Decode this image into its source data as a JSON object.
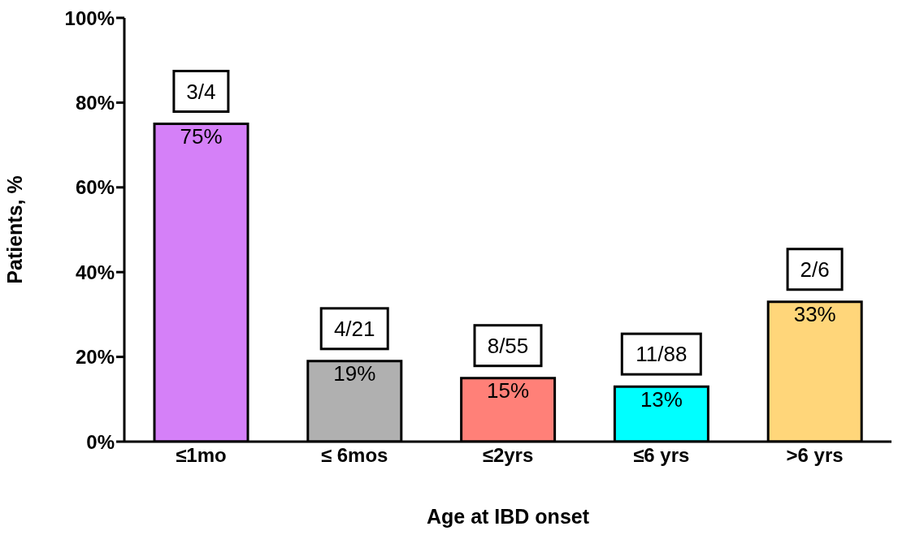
{
  "chart_data": {
    "type": "bar",
    "xlabel": "Age at IBD onset",
    "ylabel": "Patients, %",
    "categories": [
      "≤1mo",
      "≤ 6mos",
      "≤2yrs",
      "≤6 yrs",
      ">6 yrs"
    ],
    "values": [
      75,
      19,
      15,
      13,
      33
    ],
    "colors": [
      "#d580f8",
      "#b0b0b0",
      "#ff8078",
      "#00ffff",
      "#ffd67a"
    ],
    "value_labels": [
      "75%",
      "19%",
      "15%",
      "13%",
      "33%"
    ],
    "annotations": [
      {
        "text": "3/4",
        "x": "≤1mo",
        "y": 75
      },
      {
        "text": "4/21",
        "x": "≤ 6mos",
        "y": 19
      },
      {
        "text": "8/55",
        "x": "≤2yrs",
        "y": 15
      },
      {
        "text": "11/88",
        "x": "≤6 yrs",
        "y": 13
      },
      {
        "text": "2/6",
        "x": ">6 yrs",
        "y": 33
      }
    ],
    "ylim": [
      0,
      100
    ],
    "yticks": [
      {
        "value": 0,
        "label": "0%"
      },
      {
        "value": 20,
        "label": "20%"
      },
      {
        "value": 40,
        "label": "40%"
      },
      {
        "value": 60,
        "label": "60%"
      },
      {
        "value": 80,
        "label": "80%"
      },
      {
        "value": 100,
        "label": "100%"
      }
    ],
    "grid": false,
    "legend": false
  }
}
